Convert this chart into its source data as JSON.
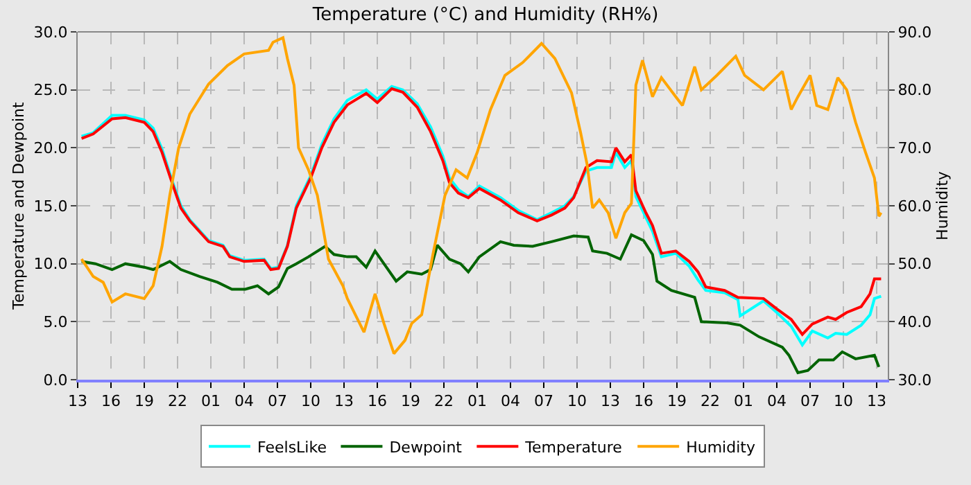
{
  "chart_data": {
    "type": "line",
    "title": "Temperature (°C) and Humidity (RH%)",
    "ylabel": "Temperature and Dewpoint",
    "y2label": "Humidity",
    "xlim": [
      "--01-01T13:00",
      "--01-04T14:00"
    ],
    "xticks": [
      {
        "value": "--01-01T13:00",
        "label": "13"
      },
      {
        "value": "--01-01T16:00",
        "label": "16"
      },
      {
        "value": "--01-01T19:00",
        "label": "19"
      },
      {
        "value": "--01-01T22:00",
        "label": "22"
      },
      {
        "value": "--01-02T01:00",
        "label": "01"
      },
      {
        "value": "--01-02T04:00",
        "label": "04"
      },
      {
        "value": "--01-02T07:00",
        "label": "07"
      },
      {
        "value": "--01-02T10:00",
        "label": "10"
      },
      {
        "value": "--01-02T13:00",
        "label": "13"
      },
      {
        "value": "--01-02T16:00",
        "label": "16"
      },
      {
        "value": "--01-02T19:00",
        "label": "19"
      },
      {
        "value": "--01-02T22:00",
        "label": "22"
      },
      {
        "value": "--01-03T01:00",
        "label": "01"
      },
      {
        "value": "--01-03T04:00",
        "label": "04"
      },
      {
        "value": "--01-03T07:00",
        "label": "07"
      },
      {
        "value": "--01-03T10:00",
        "label": "10"
      },
      {
        "value": "--01-03T13:00",
        "label": "13"
      },
      {
        "value": "--01-03T16:00",
        "label": "16"
      },
      {
        "value": "--01-03T19:00",
        "label": "19"
      },
      {
        "value": "--01-03T22:00",
        "label": "22"
      },
      {
        "value": "--01-04T01:00",
        "label": "01"
      },
      {
        "value": "--01-04T04:00",
        "label": "04"
      },
      {
        "value": "--01-04T07:00",
        "label": "07"
      },
      {
        "value": "--01-04T10:00",
        "label": "10"
      },
      {
        "value": "--01-04T13:00",
        "label": "13"
      }
    ],
    "ylim": [
      0,
      30
    ],
    "yticks": [
      {
        "value": 0,
        "label": "0.0"
      },
      {
        "value": 5,
        "label": "5.0"
      },
      {
        "value": 10,
        "label": "10.0"
      },
      {
        "value": 15,
        "label": "15.0"
      },
      {
        "value": 20,
        "label": "20.0"
      },
      {
        "value": 25,
        "label": "25.0"
      },
      {
        "value": 30,
        "label": "30.0"
      }
    ],
    "y2lim": [
      30,
      90
    ],
    "y2ticks": [
      {
        "value": 30,
        "label": "30.0"
      },
      {
        "value": 40,
        "label": "40.0"
      },
      {
        "value": 50,
        "label": "50.0"
      },
      {
        "value": 60,
        "label": "60.0"
      },
      {
        "value": 70,
        "label": "70.0"
      },
      {
        "value": 80,
        "label": "80.0"
      },
      {
        "value": 90,
        "label": "90.0"
      }
    ],
    "grid": true,
    "legend": "bottom",
    "line_style": "solid",
    "series": [
      {
        "name": "FeelsLike",
        "color": "#00ffff",
        "x": [
          "--01-01T13:21",
          "--01-01T14:24",
          "--01-01T16:06",
          "--01-01T17:18",
          "--01-01T19:00",
          "--01-01T19:48",
          "--01-01T20:36",
          "--01-01T21:30",
          "--01-01T22:18",
          "--01-01T23:06",
          "--01-02T00:48",
          "--01-02T02:06",
          "--01-02T02:42",
          "--01-02T04:00",
          "--01-02T05:48",
          "--01-02T06:24",
          "--01-02T07:06",
          "--01-02T07:54",
          "--01-02T08:42",
          "--01-02T10:00",
          "--01-02T11:00",
          "--01-02T12:06",
          "--01-02T13:18",
          "--01-02T15:00",
          "--01-02T16:00",
          "--01-02T17:18",
          "--01-02T18:18",
          "--01-02T19:36",
          "--01-02T20:48",
          "--01-02T21:54",
          "--01-02T22:30",
          "--01-02T23:18",
          "--01-03T00:12",
          "--01-03T01:12",
          "--01-03T03:06",
          "--01-03T04:42",
          "--01-03T06:24",
          "--01-03T07:42",
          "--01-03T08:54",
          "--01-03T09:42",
          "--01-03T10:48",
          "--01-03T11:48",
          "--01-03T13:06",
          "--01-03T13:30",
          "--01-03T14:18",
          "--01-03T14:54",
          "--01-03T15:18",
          "--01-03T16:12",
          "--01-03T16:48",
          "--01-03T17:36",
          "--01-03T18:54",
          "--01-03T20:06",
          "--01-03T20:54",
          "--01-03T21:36",
          "--01-03T23:18",
          "--01-04T00:30",
          "--01-04T00:42",
          "--01-04T02:48",
          "--01-04T04:00",
          "--01-04T05:18",
          "--01-04T06:18",
          "--01-04T07:12",
          "--01-04T08:36",
          "--01-04T09:18",
          "--01-04T10:18",
          "--01-04T11:36",
          "--01-04T12:24",
          "--01-04T12:48",
          "--01-04T13:24"
        ],
        "values": [
          21.0,
          21.3,
          22.8,
          22.8,
          22.4,
          21.7,
          19.9,
          17.2,
          15.0,
          13.8,
          12.0,
          11.6,
          10.7,
          10.3,
          10.4,
          9.6,
          9.7,
          11.6,
          15.0,
          17.6,
          20.3,
          22.5,
          24.1,
          25.0,
          24.2,
          25.3,
          25.0,
          23.8,
          21.8,
          19.3,
          17.4,
          16.4,
          15.8,
          16.7,
          15.7,
          14.6,
          13.8,
          14.4,
          15.0,
          15.8,
          18.0,
          18.3,
          18.3,
          19.6,
          18.3,
          18.9,
          15.8,
          14.0,
          12.8,
          10.6,
          10.9,
          9.8,
          8.6,
          7.7,
          7.5,
          6.9,
          5.5,
          6.8,
          5.8,
          4.6,
          3.0,
          4.2,
          3.6,
          4.0,
          3.9,
          4.7,
          5.6,
          7.0,
          7.2
        ]
      },
      {
        "name": "Dewpoint",
        "color": "#006400",
        "x": [
          "--01-01T13:21",
          "--01-01T14:36",
          "--01-01T16:06",
          "--01-01T17:18",
          "--01-01T19:00",
          "--01-01T19:48",
          "--01-01T21:18",
          "--01-01T22:18",
          "--01-02T00:00",
          "--01-02T01:36",
          "--01-02T02:54",
          "--01-02T04:06",
          "--01-02T05:12",
          "--01-02T06:12",
          "--01-02T07:06",
          "--01-02T07:54",
          "--01-02T08:42",
          "--01-02T09:48",
          "--01-02T11:18",
          "--01-02T12:06",
          "--01-02T13:18",
          "--01-02T14:06",
          "--01-02T15:00",
          "--01-02T15:48",
          "--01-02T16:36",
          "--01-02T17:42",
          "--01-02T18:42",
          "--01-02T20:00",
          "--01-02T20:48",
          "--01-02T21:24",
          "--01-02T22:30",
          "--01-02T23:30",
          "--01-03T00:12",
          "--01-03T01:12",
          "--01-03T03:06",
          "--01-03T04:18",
          "--01-03T06:00",
          "--01-03T07:42",
          "--01-03T09:42",
          "--01-03T11:00",
          "--01-03T11:24",
          "--01-03T12:42",
          "--01-03T13:54",
          "--01-03T14:54",
          "--01-03T16:00",
          "--01-03T16:48",
          "--01-03T17:12",
          "--01-03T18:30",
          "--01-03T20:36",
          "--01-03T21:12",
          "--01-03T23:30",
          "--01-04T00:42",
          "--01-04T02:24",
          "--01-04T04:30",
          "--01-04T05:06",
          "--01-04T05:54",
          "--01-04T06:48",
          "--01-04T07:48",
          "--01-04T09:06",
          "--01-04T09:54",
          "--01-04T11:06",
          "--01-04T12:48",
          "--01-04T13:12"
        ],
        "values": [
          10.2,
          10.0,
          9.5,
          10.0,
          9.7,
          9.5,
          10.2,
          9.5,
          8.9,
          8.4,
          7.8,
          7.8,
          8.1,
          7.4,
          8.0,
          9.6,
          10.0,
          10.6,
          11.5,
          10.8,
          10.6,
          10.6,
          9.7,
          11.1,
          10.0,
          8.5,
          9.3,
          9.1,
          9.5,
          11.6,
          10.4,
          10.0,
          9.3,
          10.6,
          11.9,
          11.6,
          11.5,
          11.9,
          12.4,
          12.3,
          11.1,
          10.9,
          10.4,
          12.5,
          12.0,
          10.8,
          8.5,
          7.7,
          7.1,
          5.0,
          4.9,
          4.7,
          3.7,
          2.8,
          2.1,
          0.6,
          0.8,
          1.7,
          1.7,
          2.4,
          1.8,
          2.1,
          1.1
        ]
      },
      {
        "name": "Temperature",
        "color": "#ff0000",
        "x": [
          "--01-01T13:21",
          "--01-01T14:24",
          "--01-01T16:06",
          "--01-01T17:18",
          "--01-01T19:00",
          "--01-01T19:48",
          "--01-01T20:36",
          "--01-01T21:30",
          "--01-01T22:18",
          "--01-01T23:06",
          "--01-02T00:48",
          "--01-02T02:06",
          "--01-02T02:42",
          "--01-02T04:00",
          "--01-02T05:48",
          "--01-02T06:24",
          "--01-02T07:06",
          "--01-02T07:54",
          "--01-02T08:42",
          "--01-02T10:00",
          "--01-02T11:00",
          "--01-02T12:06",
          "--01-02T13:18",
          "--01-02T15:00",
          "--01-02T16:00",
          "--01-02T17:18",
          "--01-02T18:18",
          "--01-02T19:36",
          "--01-02T20:48",
          "--01-02T21:54",
          "--01-02T22:30",
          "--01-02T23:18",
          "--01-03T00:12",
          "--01-03T01:12",
          "--01-03T03:06",
          "--01-03T04:42",
          "--01-03T06:24",
          "--01-03T07:42",
          "--01-03T08:54",
          "--01-03T09:42",
          "--01-03T10:48",
          "--01-03T11:48",
          "--01-03T13:06",
          "--01-03T13:30",
          "--01-03T14:18",
          "--01-03T14:54",
          "--01-03T15:18",
          "--01-03T16:12",
          "--01-03T16:48",
          "--01-03T17:36",
          "--01-03T18:54",
          "--01-03T20:06",
          "--01-03T20:54",
          "--01-03T21:36",
          "--01-03T23:18",
          "--01-04T00:30",
          "--01-04T02:48",
          "--01-04T04:00",
          "--01-04T05:18",
          "--01-04T06:18",
          "--01-04T07:12",
          "--01-04T08:36",
          "--01-04T09:18",
          "--01-04T10:18",
          "--01-04T11:36",
          "--01-04T12:24",
          "--01-04T12:48",
          "--01-04T13:24"
        ],
        "values": [
          20.8,
          21.2,
          22.5,
          22.6,
          22.2,
          21.4,
          19.6,
          17.0,
          14.8,
          13.7,
          11.9,
          11.5,
          10.6,
          10.2,
          10.3,
          9.5,
          9.6,
          11.5,
          14.8,
          17.4,
          20.0,
          22.2,
          23.7,
          24.7,
          23.9,
          25.1,
          24.8,
          23.5,
          21.4,
          18.9,
          17.0,
          16.1,
          15.7,
          16.5,
          15.5,
          14.4,
          13.7,
          14.2,
          14.8,
          15.7,
          18.3,
          18.9,
          18.8,
          20.0,
          18.8,
          19.4,
          16.3,
          14.4,
          13.3,
          10.9,
          11.1,
          10.2,
          9.3,
          8.0,
          7.7,
          7.1,
          7.0,
          6.1,
          5.2,
          3.9,
          4.8,
          5.4,
          5.2,
          5.8,
          6.3,
          7.4,
          8.7,
          8.7
        ]
      },
      {
        "name": "Humidity",
        "color": "#ffa500",
        "axis": "y2",
        "x": [
          "--01-01T13:21",
          "--01-01T14:24",
          "--01-01T15:18",
          "--01-01T16:06",
          "--01-01T17:18",
          "--01-01T19:00",
          "--01-01T19:48",
          "--01-01T20:36",
          "--01-01T21:18",
          "--01-01T22:06",
          "--01-01T23:06",
          "--01-02T00:48",
          "--01-02T02:30",
          "--01-02T04:00",
          "--01-02T06:12",
          "--01-02T06:36",
          "--01-02T07:30",
          "--01-02T07:54",
          "--01-02T08:30",
          "--01-02T08:54",
          "--01-02T09:48",
          "--01-02T10:36",
          "--01-02T11:36",
          "--01-02T12:54",
          "--01-02T13:18",
          "--01-02T14:48",
          "--01-02T15:48",
          "--01-02T16:36",
          "--01-02T17:30",
          "--01-02T18:30",
          "--01-02T19:06",
          "--01-02T20:00",
          "--01-02T21:00",
          "--01-02T22:06",
          "--01-02T23:06",
          "--01-03T00:06",
          "--01-03T01:00",
          "--01-03T02:12",
          "--01-03T03:30",
          "--01-03T05:06",
          "--01-03T06:48",
          "--01-03T08:00",
          "--01-03T09:30",
          "--01-03T10:18",
          "--01-03T10:54",
          "--01-03T11:24",
          "--01-03T12:00",
          "--01-03T12:48",
          "--01-03T13:30",
          "--01-03T14:18",
          "--01-03T14:54",
          "--01-03T15:18",
          "--01-03T15:54",
          "--01-03T16:48",
          "--01-03T17:36",
          "--01-03T18:54",
          "--01-03T19:30",
          "--01-03T20:36",
          "--01-03T21:12",
          "--01-03T22:36",
          "--01-04T00:18",
          "--01-04T01:06",
          "--01-04T02:48",
          "--01-04T04:30",
          "--01-04T05:18",
          "--01-04T05:54",
          "--01-04T07:00",
          "--01-04T07:36",
          "--01-04T08:36",
          "--01-04T09:30",
          "--01-04T10:18",
          "--01-04T11:06",
          "--01-04T12:00",
          "--01-04T12:48",
          "--01-04T13:12",
          "--01-04T13:24"
        ],
        "values": [
          50.8,
          47.8,
          46.8,
          43.4,
          44.8,
          44.0,
          46.2,
          53.0,
          61.8,
          70.0,
          75.8,
          81.0,
          84.2,
          86.2,
          86.8,
          88.2,
          89.0,
          85.4,
          80.8,
          70.0,
          66.2,
          61.8,
          50.8,
          46.2,
          44.0,
          38.2,
          44.8,
          39.7,
          34.5,
          36.8,
          39.7,
          41.2,
          51.5,
          61.8,
          66.2,
          64.8,
          69.2,
          76.6,
          82.5,
          84.7,
          88.0,
          85.4,
          79.5,
          72.8,
          67.2,
          59.6,
          61.0,
          58.8,
          54.4,
          58.8,
          60.4,
          80.8,
          85.1,
          78.8,
          82.1,
          78.8,
          77.3,
          84.0,
          80.0,
          82.5,
          85.8,
          82.5,
          80.0,
          83.2,
          76.6,
          78.8,
          82.5,
          77.3,
          76.6,
          82.1,
          80.0,
          74.4,
          69.2,
          64.8,
          58.2,
          58.8
        ]
      }
    ]
  }
}
